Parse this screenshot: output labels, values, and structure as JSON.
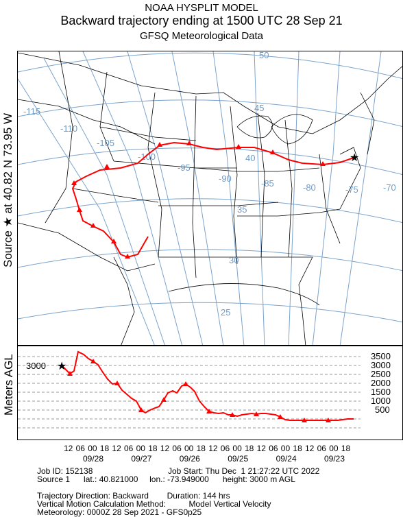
{
  "header": {
    "line1": "NOAA HYSPLIT MODEL",
    "line2": "Backward trajectory ending at 1500 UTC 28 Sep 21",
    "line3": "GFSQ Meteorological Data"
  },
  "source_label": "Source ★ at  40.82 N   73.95 W",
  "altitude_label": "Meters AGL",
  "map": {
    "longitude_labels": [
      "-115",
      "-110",
      "-105",
      "-100",
      "-95",
      "-90",
      "-85",
      "-80",
      "-75",
      "-70"
    ],
    "latitude_labels": [
      "50",
      "45",
      "40",
      "35",
      "30",
      "25"
    ],
    "trajectory_color": "#ff0000",
    "source_marker": "star-icon"
  },
  "altitude": {
    "start_label": "3000",
    "levels": [
      "3500",
      "3000",
      "2500",
      "2000",
      "1500",
      "1000",
      "500"
    ]
  },
  "time_axis": {
    "hours": [
      "12",
      "06",
      "00",
      "18",
      "12",
      "06",
      "00",
      "18",
      "12",
      "06",
      "00",
      "18",
      "12",
      "06",
      "00",
      "18",
      "12",
      "06",
      "00",
      "18",
      "12",
      "06",
      "00",
      "18"
    ],
    "dates": [
      "09/28",
      "09/27",
      "09/26",
      "09/25",
      "09/24",
      "09/23"
    ]
  },
  "footer": {
    "job_id": "Job ID: 152138",
    "job_start": "Job Start: Thu Dec  1 21:27:22 UTC 2022",
    "source_line": "Source 1      lat.: 40.821000     lon.: -73.949000      height: 3000 m AGL",
    "trajectory_direction": "Trajectory Direction: Backward        Duration: 144 hrs",
    "vertical_method": "Vertical Motion Calculation Method:          Model Vertical Velocity",
    "meteorology": "Meteorology: 0000Z 28 Sep 2021 - GFS0p25"
  }
}
